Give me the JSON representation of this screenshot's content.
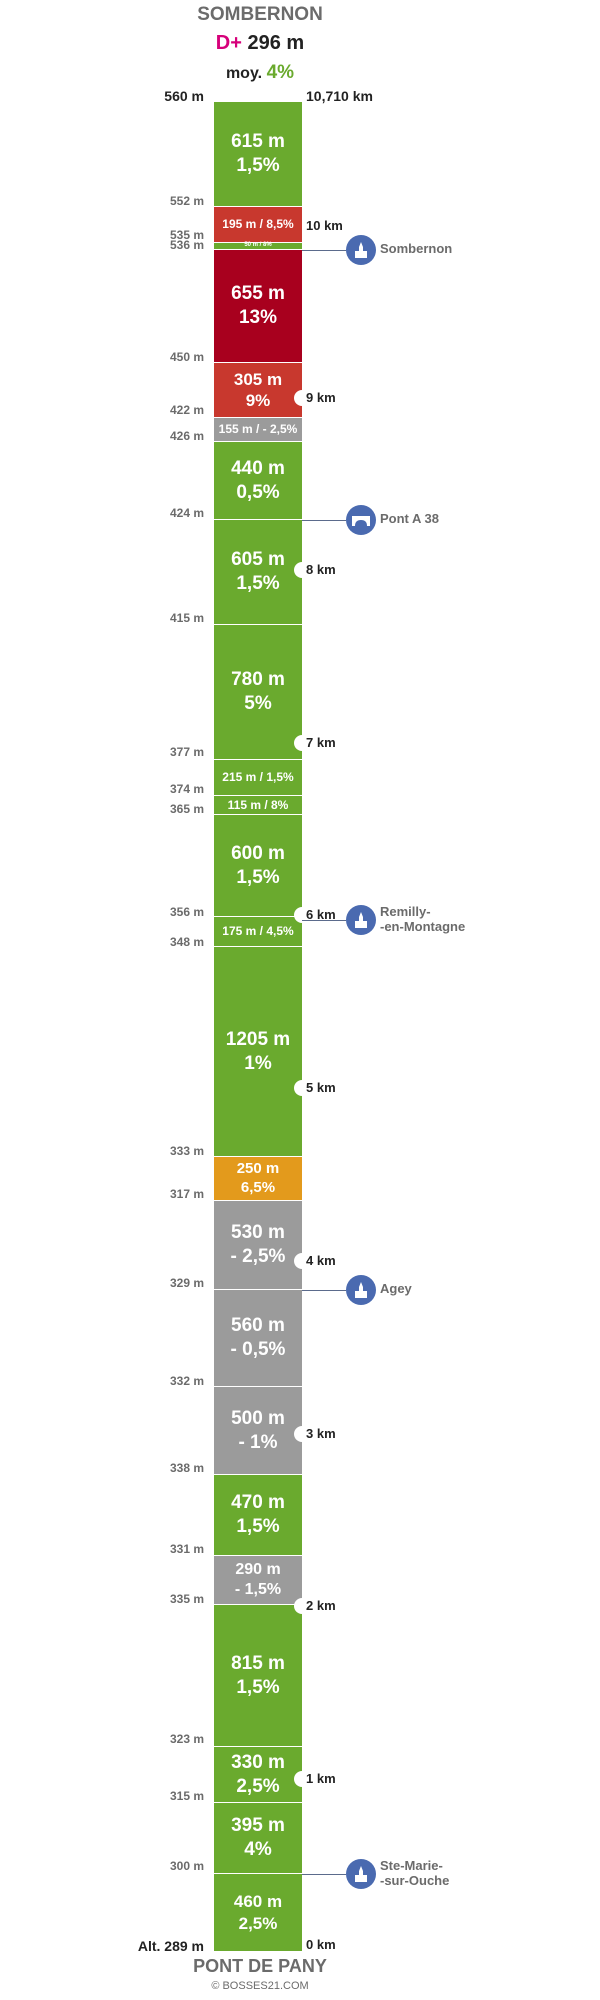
{
  "header": {
    "title": "SOMBERNON",
    "dplus_label": "D+",
    "dplus_value": "296 m",
    "moy_label": "moy.",
    "moy_value": "4%"
  },
  "top": {
    "altitude": "560 m",
    "distance": "10,710 km"
  },
  "segments": [
    {
      "text": "615 m\n1,5%",
      "color": "#6aaa2e",
      "size": 19
    },
    {
      "text": "195 m / 8,5%",
      "color": "#c8382e",
      "size": 12
    },
    {
      "text": "50 m / 8%",
      "color": "#6aaa2e",
      "size": 6
    },
    {
      "text": "655 m\n13%",
      "color": "#a8001e",
      "size": 19
    },
    {
      "text": "305 m\n9%",
      "color": "#c8382e",
      "size": 17
    },
    {
      "text": "155 m / - 2,5%",
      "color": "#9b9b9b",
      "size": 12
    },
    {
      "text": "440 m\n0,5%",
      "color": "#6aaa2e",
      "size": 19
    },
    {
      "text": "605 m\n1,5%",
      "color": "#6aaa2e",
      "size": 19
    },
    {
      "text": "780 m\n5%",
      "color": "#6aaa2e",
      "size": 19
    },
    {
      "text": "215 m / 1,5%",
      "color": "#6aaa2e",
      "size": 12
    },
    {
      "text": "115 m / 8%",
      "color": "#6aaa2e",
      "size": 12
    },
    {
      "text": "600 m\n1,5%",
      "color": "#6aaa2e",
      "size": 19
    },
    {
      "text": "175 m / 4,5%",
      "color": "#6aaa2e",
      "size": 12
    },
    {
      "text": "1205 m\n1%",
      "color": "#6aaa2e",
      "size": 19
    },
    {
      "text": "250 m\n6,5%",
      "color": "#e39a1c",
      "size": 15
    },
    {
      "text": "530 m\n- 2,5%",
      "color": "#9b9b9b",
      "size": 19
    },
    {
      "text": "560 m\n- 0,5%",
      "color": "#9b9b9b",
      "size": 19
    },
    {
      "text": "500 m\n- 1%",
      "color": "#9b9b9b",
      "size": 19
    },
    {
      "text": "470 m\n1,5%",
      "color": "#6aaa2e",
      "size": 19
    },
    {
      "text": "290 m\n- 1,5%",
      "color": "#9b9b9b",
      "size": 16
    },
    {
      "text": "815 m\n1,5%",
      "color": "#6aaa2e",
      "size": 19
    },
    {
      "text": "330 m\n2,5%",
      "color": "#6aaa2e",
      "size": 19
    },
    {
      "text": "395 m\n4%",
      "color": "#6aaa2e",
      "size": 19
    },
    {
      "text": "460 m\n2,5%",
      "color": "#6aaa2e",
      "size": 17
    }
  ],
  "altitudes": [
    "552 m",
    "535 m",
    "536 m",
    "450 m",
    "422 m",
    "426 m",
    "424 m",
    "415 m",
    "377 m",
    "374 m",
    "365 m",
    "356 m",
    "348 m",
    "333 m",
    "317 m",
    "329 m",
    "332 m",
    "338 m",
    "331 m",
    "335 m",
    "323 m",
    "315 m",
    "300 m"
  ],
  "km_markers": [
    "10 km",
    "9 km",
    "8 km",
    "7 km",
    "6 km",
    "5 km",
    "4 km",
    "3 km",
    "2 km",
    "1 km",
    "0 km"
  ],
  "pois": [
    {
      "label": "Sombernon",
      "icon": "church-icon"
    },
    {
      "label": "Pont A 38",
      "icon": "bridge-icon"
    },
    {
      "label": "Remilly-\n-en-Montagne",
      "icon": "church-icon"
    },
    {
      "label": "Agey",
      "icon": "church-icon"
    },
    {
      "label": "Ste-Marie-\n-sur-Ouche",
      "icon": "church-icon"
    }
  ],
  "bottom": {
    "altitude": "Alt. 289 m",
    "name": "PONT DE PANY",
    "copyright": "© BOSSES21.COM"
  }
}
